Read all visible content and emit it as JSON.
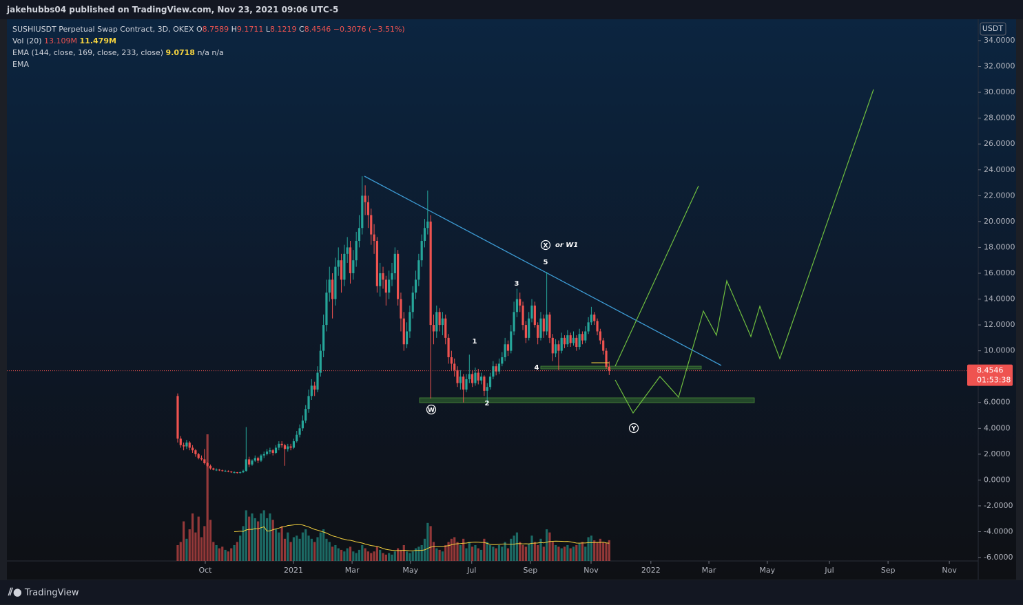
{
  "header": {
    "publisher": "jakehubbs04 published on TradingView.com, Nov 23, 2021 09:06 UTC-5"
  },
  "chart_data": {
    "type": "candlestick",
    "legend": {
      "symbol": "SUSHIUSDT Perpetual Swap Contract, 3D, OKEX",
      "o": "O",
      "h": "H",
      "l": "L",
      "c": "C",
      "change": "−0.3076 (−3.51%)",
      "vol_name": "Vol (20)",
      "vol_value": "13.109M",
      "vol_ma": "11.479M",
      "ema_name": "EMA (144, close, 169, close, 233, close)",
      "ema_value": 9.0718,
      "ema_na1": "n/a",
      "ema_na2": "n/a",
      "ema2_name": "EMA"
    },
    "candles": [
      [
        6.5,
        6.7,
        2.9,
        3.2
      ],
      [
        3.2,
        3.4,
        2.5,
        2.7
      ],
      [
        2.7,
        2.9,
        2.3,
        2.6
      ],
      [
        2.6,
        3.1,
        2.4,
        2.9
      ],
      [
        2.9,
        3.0,
        2.3,
        2.5
      ],
      [
        2.5,
        2.7,
        2.1,
        2.3
      ],
      [
        2.3,
        2.4,
        1.8,
        2.0
      ],
      [
        2.0,
        2.1,
        1.6,
        1.7
      ],
      [
        1.7,
        1.9,
        1.5,
        1.6
      ],
      [
        1.6,
        2.4,
        1.2,
        1.3
      ],
      [
        1.3,
        1.4,
        1.0,
        1.1
      ],
      [
        1.1,
        1.2,
        0.8,
        0.9
      ],
      [
        0.9,
        0.95,
        0.75,
        0.8
      ],
      [
        0.8,
        0.9,
        0.7,
        0.8
      ],
      [
        0.8,
        0.85,
        0.7,
        0.75
      ],
      [
        0.75,
        0.8,
        0.65,
        0.7
      ],
      [
        0.7,
        0.78,
        0.62,
        0.7
      ],
      [
        0.7,
        0.75,
        0.6,
        0.65
      ],
      [
        0.65,
        0.7,
        0.55,
        0.6
      ],
      [
        0.6,
        0.68,
        0.52,
        0.6
      ],
      [
        0.6,
        0.62,
        0.5,
        0.55
      ],
      [
        0.55,
        0.66,
        0.5,
        0.6
      ],
      [
        0.6,
        0.8,
        0.55,
        0.7
      ],
      [
        0.7,
        4.1,
        0.65,
        1.6
      ],
      [
        1.6,
        1.8,
        1.0,
        1.2
      ],
      [
        1.2,
        1.6,
        1.1,
        1.5
      ],
      [
        1.5,
        1.9,
        1.4,
        1.7
      ],
      [
        1.7,
        1.8,
        1.3,
        1.5
      ],
      [
        1.5,
        2.0,
        1.4,
        1.9
      ],
      [
        1.9,
        2.2,
        1.7,
        2.0
      ],
      [
        2.0,
        2.4,
        1.9,
        2.2
      ],
      [
        2.2,
        2.5,
        2.0,
        2.3
      ],
      [
        2.3,
        2.4,
        1.9,
        2.1
      ],
      [
        2.1,
        2.7,
        2.0,
        2.5
      ],
      [
        2.5,
        3.0,
        2.3,
        2.8
      ],
      [
        2.8,
        3.0,
        2.5,
        2.7
      ],
      [
        2.7,
        2.8,
        1.1,
        2.4
      ],
      [
        2.4,
        2.8,
        2.2,
        2.6
      ],
      [
        2.6,
        2.8,
        2.3,
        2.5
      ],
      [
        2.5,
        3.2,
        2.4,
        3.0
      ],
      [
        3.0,
        3.8,
        2.9,
        3.5
      ],
      [
        3.5,
        4.3,
        3.3,
        4.0
      ],
      [
        4.0,
        5.0,
        3.8,
        4.6
      ],
      [
        4.6,
        5.8,
        4.4,
        5.5
      ],
      [
        5.5,
        7.0,
        5.2,
        6.5
      ],
      [
        6.5,
        7.8,
        6.2,
        7.3
      ],
      [
        7.3,
        7.6,
        6.5,
        7.0
      ],
      [
        7.0,
        8.8,
        6.8,
        8.3
      ],
      [
        8.3,
        10.5,
        8.0,
        10.0
      ],
      [
        10.0,
        12.8,
        9.5,
        12.0
      ],
      [
        12.0,
        15.5,
        11.5,
        14.5
      ],
      [
        14.5,
        16.5,
        13.8,
        15.5
      ],
      [
        15.5,
        16.0,
        12.5,
        14.0
      ],
      [
        14.0,
        17.2,
        13.5,
        16.5
      ],
      [
        16.5,
        18.0,
        15.8,
        17.0
      ],
      [
        17.0,
        17.5,
        14.5,
        15.5
      ],
      [
        15.5,
        18.2,
        15.0,
        17.5
      ],
      [
        17.5,
        18.8,
        16.8,
        18.0
      ],
      [
        18.0,
        18.5,
        15.2,
        16.0
      ],
      [
        16.0,
        17.8,
        15.5,
        17.0
      ],
      [
        17.0,
        19.2,
        16.5,
        18.5
      ],
      [
        18.5,
        20.5,
        18.0,
        19.5
      ],
      [
        19.5,
        23.5,
        19.0,
        22.0
      ],
      [
        22.0,
        22.8,
        20.5,
        21.5
      ],
      [
        21.5,
        22.0,
        19.5,
        20.5
      ],
      [
        20.5,
        21.0,
        18.2,
        19.0
      ],
      [
        19.0,
        19.8,
        17.5,
        18.5
      ],
      [
        18.5,
        18.8,
        14.5,
        15.0
      ],
      [
        15.0,
        16.8,
        14.2,
        16.0
      ],
      [
        16.0,
        16.5,
        14.8,
        15.5
      ],
      [
        15.5,
        15.8,
        13.5,
        14.5
      ],
      [
        14.5,
        16.2,
        14.0,
        15.5
      ],
      [
        15.5,
        16.8,
        15.0,
        16.0
      ],
      [
        16.0,
        18.0,
        15.5,
        17.5
      ],
      [
        17.5,
        17.8,
        13.5,
        14.0
      ],
      [
        14.0,
        14.5,
        11.5,
        12.5
      ],
      [
        12.5,
        13.0,
        10.0,
        10.5
      ],
      [
        10.5,
        12.2,
        10.2,
        11.5
      ],
      [
        11.5,
        13.5,
        11.0,
        13.0
      ],
      [
        13.0,
        15.0,
        12.5,
        14.5
      ],
      [
        14.5,
        16.2,
        14.0,
        15.5
      ],
      [
        15.5,
        17.5,
        15.0,
        17.0
      ],
      [
        17.0,
        19.0,
        16.5,
        18.5
      ],
      [
        18.5,
        20.2,
        18.0,
        19.5
      ],
      [
        19.5,
        22.4,
        19.0,
        20.0
      ],
      [
        20.0,
        20.5,
        6.3,
        12.0
      ],
      [
        12.0,
        12.8,
        10.5,
        11.5
      ],
      [
        11.5,
        13.5,
        11.0,
        13.0
      ],
      [
        13.0,
        13.3,
        11.5,
        12.0
      ],
      [
        12.0,
        13.0,
        11.2,
        12.5
      ],
      [
        12.5,
        12.8,
        10.5,
        11.0
      ],
      [
        11.0,
        11.3,
        9.0,
        9.5
      ],
      [
        9.5,
        10.0,
        8.5,
        9.0
      ],
      [
        9.0,
        9.4,
        8.0,
        8.5
      ],
      [
        8.5,
        8.8,
        7.2,
        7.5
      ],
      [
        7.5,
        8.5,
        7.0,
        8.0
      ],
      [
        8.0,
        8.2,
        6.0,
        7.0
      ],
      [
        7.0,
        8.2,
        6.8,
        7.8
      ],
      [
        7.8,
        9.7,
        7.5,
        8.2
      ],
      [
        8.2,
        8.5,
        7.2,
        7.5
      ],
      [
        7.5,
        8.7,
        7.3,
        8.3
      ],
      [
        8.3,
        8.6,
        7.4,
        7.7
      ],
      [
        7.7,
        8.3,
        7.4,
        8.0
      ],
      [
        8.0,
        8.1,
        6.5,
        6.9
      ],
      [
        6.9,
        7.5,
        6.0,
        7.2
      ],
      [
        7.2,
        8.3,
        7.0,
        8.0
      ],
      [
        8.0,
        9.2,
        7.8,
        8.8
      ],
      [
        8.8,
        9.0,
        8.1,
        8.4
      ],
      [
        8.4,
        9.4,
        8.2,
        9.0
      ],
      [
        9.0,
        9.9,
        8.8,
        9.5
      ],
      [
        9.5,
        11.0,
        9.2,
        10.5
      ],
      [
        10.5,
        10.8,
        9.6,
        10.0
      ],
      [
        10.0,
        12.0,
        9.8,
        11.5
      ],
      [
        11.5,
        13.8,
        11.2,
        13.0
      ],
      [
        13.0,
        14.8,
        12.6,
        14.0
      ],
      [
        14.0,
        14.5,
        13.0,
        13.5
      ],
      [
        13.5,
        13.8,
        11.6,
        12.0
      ],
      [
        12.0,
        12.3,
        10.6,
        11.0
      ],
      [
        11.0,
        13.0,
        10.8,
        12.5
      ],
      [
        12.5,
        14.0,
        12.2,
        13.5
      ],
      [
        13.5,
        13.8,
        11.8,
        12.0
      ],
      [
        12.0,
        12.2,
        10.5,
        11.0
      ],
      [
        11.0,
        13.0,
        10.8,
        12.5
      ],
      [
        12.5,
        12.8,
        11.0,
        11.5
      ],
      [
        11.5,
        16.1,
        11.2,
        12.8
      ],
      [
        12.8,
        13.0,
        10.6,
        11.0
      ],
      [
        11.0,
        11.3,
        9.2,
        9.8
      ],
      [
        9.8,
        10.9,
        9.5,
        10.5
      ],
      [
        10.5,
        10.8,
        8.5,
        10.0
      ],
      [
        10.0,
        11.4,
        9.8,
        11.0
      ],
      [
        11.0,
        11.2,
        10.2,
        10.5
      ],
      [
        10.5,
        11.6,
        10.3,
        11.2
      ],
      [
        11.2,
        11.4,
        10.3,
        10.6
      ],
      [
        10.6,
        11.5,
        10.4,
        11.0
      ],
      [
        11.0,
        11.2,
        10.0,
        10.3
      ],
      [
        10.3,
        11.7,
        10.1,
        11.3
      ],
      [
        11.3,
        11.5,
        10.5,
        10.8
      ],
      [
        10.8,
        11.9,
        10.6,
        11.5
      ],
      [
        11.5,
        12.6,
        11.3,
        12.2
      ],
      [
        12.2,
        13.4,
        12.0,
        12.8
      ],
      [
        12.8,
        13.0,
        12.0,
        12.3
      ],
      [
        12.3,
        12.5,
        11.2,
        11.5
      ],
      [
        11.5,
        11.7,
        10.5,
        10.8
      ],
      [
        10.8,
        11.0,
        9.7,
        10.0
      ],
      [
        10.0,
        10.2,
        8.6,
        8.76
      ],
      [
        8.7589,
        9.1711,
        8.1219,
        8.4546
      ]
    ],
    "volumes": [
      10,
      12,
      25,
      14,
      20,
      30,
      18,
      28,
      15,
      22,
      80,
      26,
      12,
      10,
      8,
      9,
      7,
      6,
      8,
      10,
      12,
      16,
      22,
      32,
      28,
      30,
      27,
      25,
      30,
      32,
      27,
      30,
      26,
      20,
      18,
      22,
      14,
      18,
      12,
      15,
      16,
      14,
      18,
      20,
      16,
      14,
      12,
      15,
      18,
      20,
      14,
      12,
      9,
      10,
      8,
      7,
      6,
      8,
      9,
      6,
      5,
      7,
      10,
      8,
      6,
      5,
      6,
      9,
      7,
      5,
      4,
      5,
      4,
      6,
      8,
      7,
      10,
      6,
      5,
      6,
      8,
      9,
      10,
      14,
      24,
      22,
      12,
      8,
      7,
      6,
      10,
      12,
      14,
      15,
      12,
      10,
      14,
      8,
      12,
      9,
      10,
      8,
      7,
      14,
      12,
      10,
      9,
      8,
      10,
      9,
      12,
      8,
      14,
      16,
      18,
      12,
      10,
      9,
      11,
      16,
      12,
      10,
      14,
      9,
      20,
      18,
      12,
      10,
      9,
      8,
      9,
      10,
      8,
      9,
      10,
      11,
      12,
      9,
      15,
      16,
      13,
      12,
      14,
      12,
      11.5,
      13.109
    ],
    "colors": {
      "up": "#26a69a",
      "down": "#ef5350",
      "trendline": "#3d9bd4",
      "projection": "#6fbf3f",
      "ema": "#f5d33f"
    },
    "xlim": [
      -57.4,
      269
    ],
    "xticks": [
      {
        "value": 9.26,
        "label": "Oct"
      },
      {
        "value": 38.9,
        "label": "2021"
      },
      {
        "value": 58.6,
        "label": "Mar"
      },
      {
        "value": 78.2,
        "label": "May"
      },
      {
        "value": 98.8,
        "label": "Jul"
      },
      {
        "value": 118.5,
        "label": "Sep"
      },
      {
        "value": 138.9,
        "label": "Nov"
      },
      {
        "value": 159.0,
        "label": "2022"
      },
      {
        "value": 178.5,
        "label": "Mar"
      },
      {
        "value": 198.1,
        "label": "May"
      },
      {
        "value": 219.0,
        "label": "Jul"
      },
      {
        "value": 238.7,
        "label": "Sep"
      },
      {
        "value": 259.3,
        "label": "Nov"
      }
    ],
    "ylim": [
      -7.7,
      35.65
    ],
    "yticks": [
      {
        "value": 34,
        "label": "34.0000"
      },
      {
        "value": 32,
        "label": "32.0000"
      },
      {
        "value": 30,
        "label": "30.0000"
      },
      {
        "value": 28,
        "label": "28.0000"
      },
      {
        "value": 26,
        "label": "26.0000"
      },
      {
        "value": 24,
        "label": "24.0000"
      },
      {
        "value": 22,
        "label": "22.0000"
      },
      {
        "value": 20,
        "label": "20.0000"
      },
      {
        "value": 18,
        "label": "18.0000"
      },
      {
        "value": 16,
        "label": "16.0000"
      },
      {
        "value": 14,
        "label": "14.0000"
      },
      {
        "value": 12,
        "label": "12.0000"
      },
      {
        "value": 10,
        "label": "10.0000"
      },
      {
        "value": 8,
        "label": "8.0000"
      },
      {
        "value": 6,
        "label": "6.0000"
      },
      {
        "value": 4,
        "label": "4.0000"
      },
      {
        "value": 2,
        "label": "2.0000"
      },
      {
        "value": 0,
        "label": "0.0000"
      },
      {
        "value": -2,
        "label": "-2.0000"
      },
      {
        "value": -4,
        "label": "-4.0000"
      },
      {
        "value": -6,
        "label": "-6.0000"
      }
    ],
    "currency": "USDT",
    "countdown": "01:53:38",
    "annotations": [
      {
        "text": "1"
      },
      {
        "text": "2"
      },
      {
        "text": "3"
      },
      {
        "text": "4"
      },
      {
        "text": "5"
      },
      {
        "text": "X"
      },
      {
        "text": "or W1"
      },
      {
        "text": "W"
      },
      {
        "text": "Y"
      }
    ]
  },
  "footer": {
    "brand": "TradingView"
  }
}
